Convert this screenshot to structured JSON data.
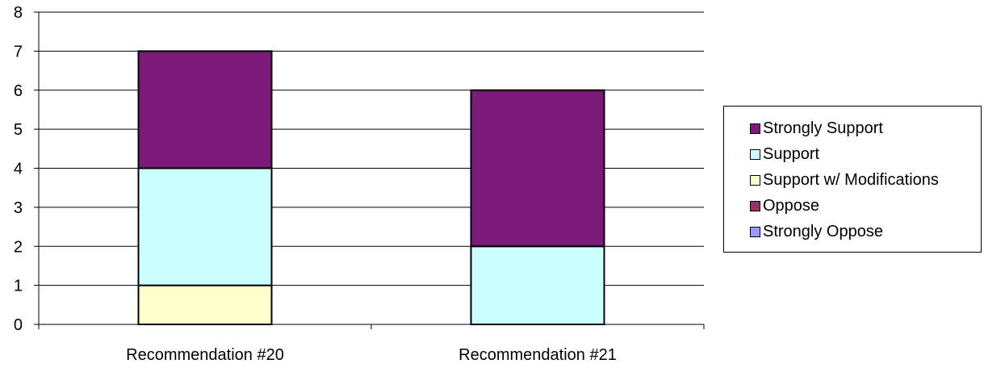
{
  "chart_data": {
    "type": "bar",
    "stacked": true,
    "categories": [
      "Recommendation #20",
      "Recommendation #21"
    ],
    "series": [
      {
        "name": "Strongly Oppose",
        "values": [
          0,
          0
        ],
        "color": "#9999FF"
      },
      {
        "name": "Oppose",
        "values": [
          0,
          0
        ],
        "color": "#993366"
      },
      {
        "name": "Support w/ Modifications",
        "values": [
          1,
          0
        ],
        "color": "#FFFFCC"
      },
      {
        "name": "Support",
        "values": [
          3,
          2
        ],
        "color": "#CCFFFF"
      },
      {
        "name": "Strongly Support",
        "values": [
          3,
          4
        ],
        "color": "#7B1A78"
      }
    ],
    "legend_order": [
      "Strongly Support",
      "Support",
      "Support w/ Modifications",
      "Oppose",
      "Strongly Oppose"
    ],
    "ylim": [
      0,
      8
    ],
    "yticks": [
      "0",
      "1",
      "2",
      "3",
      "4",
      "5",
      "6",
      "7",
      "8"
    ],
    "grid": true,
    "legend_position": "right",
    "title": "",
    "xlabel": "",
    "ylabel": ""
  }
}
